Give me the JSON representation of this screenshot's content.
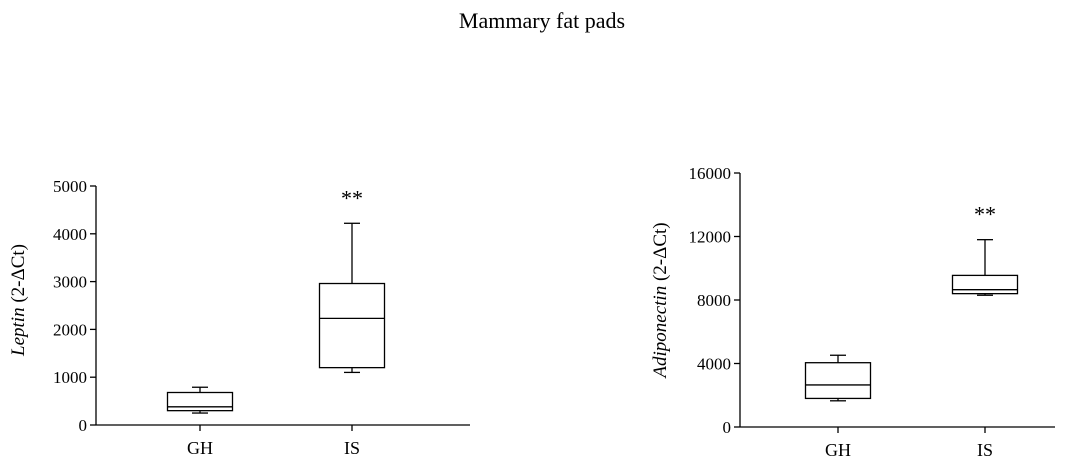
{
  "figure": {
    "title": "Mammary  fat pads"
  },
  "chart_data": [
    {
      "type": "box",
      "ylabel": "Leptin (2⁻ΔCt)",
      "ylabel_main": "Leptin",
      "ylabel_unit": "(2-ΔCt)",
      "ylim": [
        0,
        5000
      ],
      "yticks": [
        0,
        1000,
        2000,
        3000,
        4000,
        5000
      ],
      "categories": [
        "GH",
        "IS"
      ],
      "boxes": [
        {
          "name": "GH",
          "min": 250,
          "q1": 300,
          "median": 380,
          "q3": 680,
          "max": 790,
          "annotation": ""
        },
        {
          "name": "IS",
          "min": 1100,
          "q1": 1200,
          "median": 2230,
          "q3": 2960,
          "max": 4220,
          "annotation": "**"
        }
      ],
      "grid": false
    },
    {
      "type": "box",
      "ylabel": "Adiponectin (2⁻ΔCt)",
      "ylabel_main": "Adiponectin",
      "ylabel_unit": "(2-ΔCt)",
      "ylim": [
        0,
        16000
      ],
      "yticks": [
        0,
        4000,
        8000,
        12000,
        16000
      ],
      "categories": [
        "GH",
        "IS"
      ],
      "boxes": [
        {
          "name": "GH",
          "min": 1650,
          "q1": 1800,
          "median": 2650,
          "q3": 4050,
          "max": 4520,
          "annotation": ""
        },
        {
          "name": "IS",
          "min": 8300,
          "q1": 8400,
          "median": 8650,
          "q3": 9550,
          "max": 11800,
          "annotation": "**"
        }
      ],
      "grid": false
    }
  ]
}
